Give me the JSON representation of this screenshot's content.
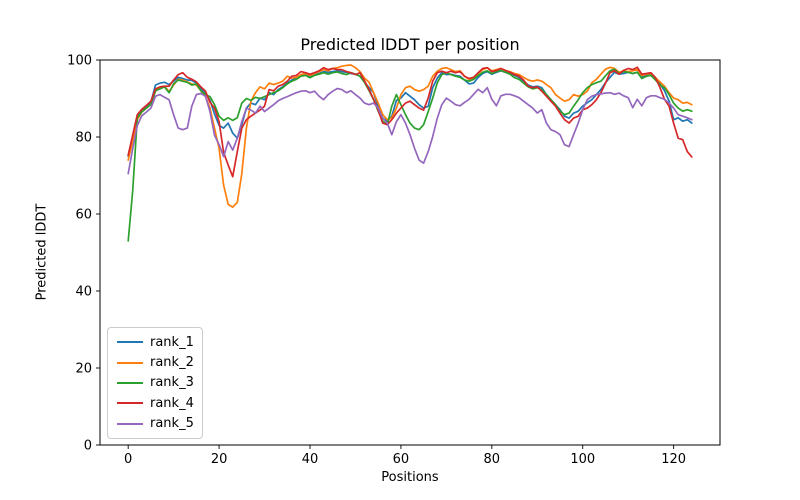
{
  "chart_data": {
    "type": "line",
    "title": "Predicted lDDT per position",
    "xlabel": "Positions",
    "ylabel": "Predicted lDDT",
    "xlim": [
      -6.2,
      130.2
    ],
    "ylim": [
      0,
      100
    ],
    "xticks": [
      0,
      20,
      40,
      60,
      80,
      100,
      120
    ],
    "yticks": [
      0,
      20,
      40,
      60,
      80,
      100
    ],
    "grid": false,
    "legend_position": "lower left",
    "x_start": 0,
    "x_step": 1,
    "series": [
      {
        "name": "rank_1",
        "color": "#1f77b4",
        "values": [
          75.0,
          80.0,
          85.5,
          87.0,
          88.0,
          89.0,
          93.5,
          94.0,
          94.2,
          93.6,
          94.5,
          95.5,
          95.2,
          94.8,
          94.7,
          94.0,
          92.5,
          91.5,
          89.5,
          86.0,
          83.0,
          82.3,
          83.6,
          81.0,
          79.7,
          83.2,
          87.5,
          88.8,
          88.4,
          90.1,
          89.7,
          91.5,
          91.0,
          92.3,
          93.0,
          94.0,
          94.8,
          95.3,
          96.0,
          96.2,
          95.8,
          96.3,
          96.5,
          97.0,
          96.8,
          97.0,
          97.2,
          97.0,
          96.8,
          96.5,
          96.3,
          95.8,
          94.2,
          92.8,
          91.5,
          87.8,
          84.9,
          84.1,
          85.4,
          89.5,
          90.1,
          91.5,
          90.6,
          89.7,
          88.4,
          87.5,
          88.0,
          92.8,
          95.3,
          96.7,
          96.2,
          96.3,
          96.0,
          95.8,
          94.8,
          93.8,
          94.0,
          95.5,
          96.5,
          97.0,
          96.3,
          96.8,
          97.2,
          96.8,
          96.5,
          96.0,
          95.5,
          94.5,
          93.5,
          93.0,
          93.2,
          92.8,
          91.0,
          89.7,
          88.4,
          87.1,
          85.4,
          84.9,
          86.2,
          86.7,
          88.0,
          88.9,
          89.7,
          91.0,
          92.3,
          94.1,
          95.5,
          96.8,
          96.3,
          96.5,
          96.8,
          96.5,
          96.8,
          95.5,
          96.0,
          96.3,
          95.2,
          93.8,
          92.0,
          89.3,
          84.5,
          85.0,
          84.1,
          84.5,
          83.6
        ]
      },
      {
        "name": "rank_2",
        "color": "#ff7f0e",
        "values": [
          74.0,
          79.0,
          84.5,
          86.5,
          87.5,
          88.5,
          92.0,
          92.7,
          93.2,
          91.8,
          93.5,
          95.0,
          94.8,
          94.3,
          93.8,
          93.5,
          92.0,
          90.5,
          87.5,
          82.3,
          77.0,
          67.5,
          62.5,
          61.8,
          63.0,
          70.5,
          82.3,
          89.3,
          91.5,
          93.0,
          92.5,
          94.0,
          93.6,
          94.0,
          94.5,
          95.8,
          95.3,
          95.5,
          96.2,
          96.5,
          96.0,
          96.5,
          97.0,
          97.5,
          97.2,
          97.8,
          98.0,
          98.4,
          98.6,
          98.7,
          98.0,
          97.0,
          95.3,
          94.2,
          91.5,
          88.8,
          85.8,
          84.5,
          85.0,
          87.5,
          91.0,
          92.8,
          93.2,
          92.3,
          91.9,
          92.3,
          93.2,
          95.8,
          97.1,
          97.8,
          98.0,
          97.5,
          97.0,
          97.2,
          95.8,
          95.0,
          95.3,
          96.5,
          97.5,
          98.0,
          97.2,
          97.5,
          97.8,
          97.2,
          97.0,
          96.5,
          96.2,
          95.5,
          94.8,
          94.5,
          94.8,
          94.5,
          93.6,
          92.8,
          91.0,
          90.1,
          89.3,
          89.7,
          91.0,
          90.6,
          91.0,
          91.9,
          94.1,
          95.0,
          96.3,
          97.6,
          98.1,
          97.8,
          96.8,
          97.2,
          97.0,
          97.2,
          97.5,
          96.0,
          96.3,
          96.5,
          95.4,
          94.3,
          93.2,
          91.5,
          90.1,
          89.7,
          88.8,
          89.0,
          88.4
        ]
      },
      {
        "name": "rank_3",
        "color": "#2ca02c",
        "values": [
          53.0,
          66.0,
          85.0,
          86.5,
          87.5,
          88.5,
          92.0,
          92.5,
          93.0,
          91.5,
          93.8,
          94.8,
          94.5,
          94.2,
          93.5,
          93.8,
          92.0,
          91.0,
          90.5,
          88.4,
          85.4,
          84.3,
          85.0,
          84.3,
          85.0,
          88.8,
          90.0,
          89.5,
          90.3,
          90.0,
          90.5,
          91.0,
          91.5,
          92.0,
          92.8,
          93.8,
          94.5,
          95.0,
          95.8,
          96.0,
          95.4,
          96.0,
          96.3,
          96.7,
          96.3,
          96.7,
          96.9,
          96.5,
          96.2,
          96.7,
          96.3,
          95.8,
          94.2,
          92.0,
          89.7,
          86.7,
          84.1,
          83.2,
          88.0,
          91.0,
          88.4,
          85.8,
          83.6,
          82.3,
          81.9,
          83.2,
          86.6,
          90.1,
          94.1,
          96.2,
          96.7,
          96.2,
          95.8,
          95.5,
          94.8,
          94.5,
          95.0,
          96.0,
          96.8,
          97.2,
          96.5,
          97.0,
          97.3,
          96.8,
          96.3,
          95.4,
          95.0,
          94.0,
          93.0,
          92.5,
          92.8,
          92.3,
          91.0,
          89.7,
          88.4,
          86.7,
          85.8,
          86.2,
          88.0,
          89.7,
          91.5,
          92.8,
          93.6,
          94.1,
          94.5,
          95.9,
          97.2,
          97.6,
          96.5,
          97.0,
          96.8,
          96.5,
          96.8,
          95.2,
          95.8,
          96.0,
          94.8,
          93.5,
          92.8,
          91.0,
          88.8,
          87.5,
          86.7,
          87.1,
          86.7
        ]
      },
      {
        "name": "rank_4",
        "color": "#d62728",
        "values": [
          75.3,
          80.5,
          85.8,
          87.2,
          88.2,
          89.3,
          92.5,
          93.0,
          93.2,
          93.2,
          94.8,
          96.2,
          96.7,
          95.5,
          95.0,
          94.3,
          93.0,
          91.9,
          89.0,
          87.5,
          84.0,
          76.0,
          72.7,
          69.7,
          76.2,
          82.3,
          84.5,
          85.4,
          86.2,
          87.0,
          88.0,
          92.3,
          92.0,
          93.2,
          93.6,
          94.5,
          95.8,
          96.0,
          97.0,
          96.7,
          96.3,
          96.7,
          97.2,
          98.0,
          97.5,
          97.8,
          97.5,
          97.5,
          97.0,
          96.7,
          96.2,
          96.7,
          94.6,
          92.3,
          89.8,
          87.0,
          83.6,
          83.2,
          84.5,
          86.2,
          87.5,
          88.8,
          89.3,
          88.4,
          87.5,
          87.0,
          90.1,
          94.5,
          96.7,
          97.1,
          96.7,
          97.1,
          96.7,
          97.0,
          95.8,
          95.2,
          95.5,
          96.7,
          97.8,
          98.0,
          97.0,
          97.3,
          97.8,
          97.3,
          96.8,
          96.2,
          95.8,
          94.8,
          93.2,
          92.8,
          93.0,
          91.9,
          90.6,
          89.3,
          88.0,
          86.2,
          84.5,
          83.6,
          84.9,
          85.4,
          87.1,
          87.5,
          88.4,
          89.7,
          91.5,
          94.0,
          96.7,
          97.2,
          96.3,
          97.3,
          97.8,
          97.5,
          98.1,
          96.3,
          96.5,
          96.7,
          95.4,
          92.8,
          89.8,
          88.0,
          83.6,
          79.7,
          79.3,
          76.2,
          74.8
        ]
      },
      {
        "name": "rank_5",
        "color": "#9467bd",
        "values": [
          70.5,
          77.0,
          83.0,
          85.5,
          86.5,
          87.5,
          90.6,
          91.0,
          90.3,
          89.7,
          85.8,
          82.3,
          81.9,
          82.3,
          88.0,
          91.0,
          91.3,
          90.6,
          86.6,
          80.5,
          78.0,
          74.9,
          78.8,
          76.6,
          79.7,
          84.0,
          87.5,
          87.0,
          86.2,
          88.0,
          86.6,
          87.5,
          88.4,
          89.4,
          90.0,
          90.5,
          91.0,
          91.5,
          91.9,
          92.0,
          91.5,
          91.9,
          90.6,
          89.7,
          91.0,
          91.9,
          92.6,
          92.3,
          91.5,
          92.0,
          91.0,
          90.1,
          88.8,
          88.4,
          88.8,
          87.5,
          84.9,
          83.6,
          80.6,
          84.0,
          85.8,
          83.6,
          80.6,
          77.1,
          74.0,
          73.2,
          76.2,
          80.1,
          84.9,
          88.4,
          90.1,
          89.3,
          88.4,
          88.1,
          89.0,
          89.8,
          91.1,
          92.4,
          91.5,
          92.8,
          89.8,
          88.1,
          90.7,
          91.1,
          91.1,
          90.7,
          90.2,
          89.3,
          88.4,
          87.5,
          86.2,
          87.1,
          83.6,
          81.9,
          81.4,
          80.6,
          78.0,
          77.5,
          80.6,
          83.6,
          87.1,
          89.7,
          90.6,
          91.0,
          91.2,
          91.4,
          91.5,
          91.1,
          91.4,
          90.7,
          90.2,
          87.6,
          89.8,
          88.1,
          90.2,
          90.7,
          90.7,
          90.2,
          89.8,
          88.8,
          87.5,
          85.8,
          85.4,
          85.0,
          84.5
        ]
      }
    ]
  }
}
